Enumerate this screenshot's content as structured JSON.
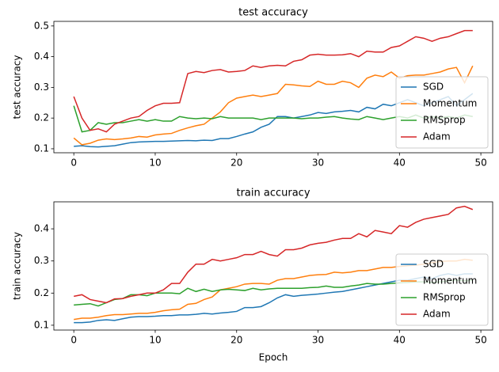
{
  "chart_data": [
    {
      "type": "line",
      "title": "test accuracy",
      "y_label": "test accuracy",
      "x": [
        0,
        1,
        2,
        3,
        4,
        5,
        6,
        7,
        8,
        9,
        10,
        11,
        12,
        13,
        14,
        15,
        16,
        17,
        18,
        19,
        20,
        21,
        22,
        23,
        24,
        25,
        26,
        27,
        28,
        29,
        30,
        31,
        32,
        33,
        34,
        35,
        36,
        37,
        38,
        39,
        40,
        41,
        42,
        43,
        44,
        45,
        46,
        47,
        48,
        49
      ],
      "xlim": [
        -2.45,
        51.45
      ],
      "xticks": [
        0,
        10,
        20,
        30,
        40,
        50
      ],
      "ylim": [
        0.087,
        0.515
      ],
      "yticks": [
        0.1,
        0.2,
        0.3,
        0.4,
        0.5
      ],
      "legend": "lower right",
      "series": [
        {
          "name": "SGD",
          "color": "#1f77b4",
          "values": [
            0.108,
            0.11,
            0.107,
            0.106,
            0.108,
            0.11,
            0.115,
            0.12,
            0.122,
            0.123,
            0.124,
            0.124,
            0.125,
            0.126,
            0.127,
            0.126,
            0.128,
            0.127,
            0.133,
            0.133,
            0.14,
            0.148,
            0.155,
            0.17,
            0.18,
            0.205,
            0.205,
            0.2,
            0.205,
            0.21,
            0.218,
            0.215,
            0.22,
            0.222,
            0.225,
            0.22,
            0.235,
            0.23,
            0.245,
            0.24,
            0.25,
            0.26,
            0.25,
            0.24,
            0.25,
            0.26,
            0.27,
            0.24,
            0.26,
            0.28
          ]
        },
        {
          "name": "Momentum",
          "color": "#ff7f0e",
          "values": [
            0.135,
            0.113,
            0.118,
            0.128,
            0.132,
            0.13,
            0.132,
            0.135,
            0.14,
            0.138,
            0.145,
            0.148,
            0.15,
            0.16,
            0.168,
            0.175,
            0.18,
            0.2,
            0.22,
            0.25,
            0.265,
            0.27,
            0.275,
            0.27,
            0.275,
            0.28,
            0.31,
            0.308,
            0.305,
            0.303,
            0.32,
            0.31,
            0.31,
            0.32,
            0.315,
            0.3,
            0.33,
            0.34,
            0.335,
            0.35,
            0.33,
            0.338,
            0.34,
            0.34,
            0.345,
            0.35,
            0.36,
            0.365,
            0.315,
            0.37
          ]
        },
        {
          "name": "RMSprop",
          "color": "#2ca02c",
          "values": [
            0.24,
            0.155,
            0.16,
            0.185,
            0.18,
            0.185,
            0.185,
            0.19,
            0.195,
            0.19,
            0.195,
            0.19,
            0.19,
            0.205,
            0.2,
            0.198,
            0.2,
            0.198,
            0.205,
            0.2,
            0.2,
            0.2,
            0.2,
            0.195,
            0.2,
            0.2,
            0.2,
            0.2,
            0.198,
            0.2,
            0.2,
            0.203,
            0.205,
            0.2,
            0.197,
            0.195,
            0.205,
            0.2,
            0.195,
            0.2,
            0.205,
            0.2,
            0.21,
            0.2,
            0.205,
            0.2,
            0.205,
            0.2,
            0.21,
            0.205
          ]
        },
        {
          "name": "Adam",
          "color": "#d62728",
          "values": [
            0.27,
            0.2,
            0.16,
            0.165,
            0.155,
            0.18,
            0.19,
            0.2,
            0.205,
            0.225,
            0.24,
            0.248,
            0.248,
            0.25,
            0.345,
            0.352,
            0.348,
            0.355,
            0.358,
            0.35,
            0.352,
            0.355,
            0.37,
            0.365,
            0.37,
            0.372,
            0.37,
            0.385,
            0.39,
            0.405,
            0.408,
            0.405,
            0.405,
            0.406,
            0.41,
            0.4,
            0.418,
            0.415,
            0.415,
            0.43,
            0.435,
            0.45,
            0.465,
            0.46,
            0.45,
            0.46,
            0.465,
            0.475,
            0.485,
            0.485
          ]
        }
      ]
    },
    {
      "type": "line",
      "title": "train accuracy",
      "y_label": "train accuracy",
      "x_label": "Epoch",
      "x": [
        0,
        1,
        2,
        3,
        4,
        5,
        6,
        7,
        8,
        9,
        10,
        11,
        12,
        13,
        14,
        15,
        16,
        17,
        18,
        19,
        20,
        21,
        22,
        23,
        24,
        25,
        26,
        27,
        28,
        29,
        30,
        31,
        32,
        33,
        34,
        35,
        36,
        37,
        38,
        39,
        40,
        41,
        42,
        43,
        44,
        45,
        46,
        47,
        48,
        49
      ],
      "xlim": [
        -2.45,
        51.45
      ],
      "xticks": [
        0,
        10,
        20,
        30,
        40,
        50
      ],
      "ylim": [
        0.085,
        0.484
      ],
      "yticks": [
        0.1,
        0.2,
        0.3,
        0.4
      ],
      "legend": "lower right",
      "series": [
        {
          "name": "SGD",
          "color": "#1f77b4",
          "values": [
            0.108,
            0.108,
            0.11,
            0.115,
            0.117,
            0.115,
            0.12,
            0.125,
            0.127,
            0.127,
            0.128,
            0.13,
            0.13,
            0.132,
            0.132,
            0.134,
            0.137,
            0.135,
            0.138,
            0.14,
            0.143,
            0.155,
            0.155,
            0.158,
            0.17,
            0.185,
            0.195,
            0.19,
            0.193,
            0.195,
            0.197,
            0.2,
            0.203,
            0.205,
            0.21,
            0.215,
            0.22,
            0.225,
            0.23,
            0.235,
            0.24,
            0.24,
            0.245,
            0.25,
            0.245,
            0.255,
            0.26,
            0.255,
            0.26,
            0.26
          ]
        },
        {
          "name": "Momentum",
          "color": "#ff7f0e",
          "values": [
            0.118,
            0.122,
            0.122,
            0.125,
            0.13,
            0.133,
            0.133,
            0.135,
            0.137,
            0.137,
            0.14,
            0.145,
            0.148,
            0.15,
            0.165,
            0.168,
            0.18,
            0.188,
            0.21,
            0.215,
            0.22,
            0.228,
            0.23,
            0.23,
            0.228,
            0.24,
            0.245,
            0.245,
            0.25,
            0.255,
            0.257,
            0.258,
            0.265,
            0.263,
            0.265,
            0.27,
            0.27,
            0.275,
            0.28,
            0.28,
            0.283,
            0.285,
            0.287,
            0.29,
            0.295,
            0.298,
            0.3,
            0.3,
            0.305,
            0.302
          ]
        },
        {
          "name": "RMSprop",
          "color": "#2ca02c",
          "values": [
            0.163,
            0.165,
            0.167,
            0.16,
            0.17,
            0.18,
            0.183,
            0.195,
            0.195,
            0.192,
            0.2,
            0.2,
            0.2,
            0.198,
            0.215,
            0.205,
            0.212,
            0.205,
            0.21,
            0.212,
            0.21,
            0.208,
            0.215,
            0.21,
            0.213,
            0.215,
            0.215,
            0.215,
            0.215,
            0.217,
            0.218,
            0.222,
            0.218,
            0.218,
            0.222,
            0.225,
            0.23,
            0.228,
            0.228,
            0.23,
            0.232,
            0.233,
            0.235,
            0.235,
            0.233,
            0.235,
            0.238,
            0.24,
            0.238,
            0.24
          ]
        },
        {
          "name": "Adam",
          "color": "#d62728",
          "values": [
            0.19,
            0.195,
            0.18,
            0.175,
            0.17,
            0.182,
            0.183,
            0.19,
            0.195,
            0.2,
            0.2,
            0.21,
            0.23,
            0.23,
            0.265,
            0.29,
            0.29,
            0.305,
            0.3,
            0.305,
            0.31,
            0.32,
            0.32,
            0.33,
            0.32,
            0.315,
            0.335,
            0.335,
            0.34,
            0.35,
            0.355,
            0.358,
            0.365,
            0.37,
            0.37,
            0.385,
            0.375,
            0.395,
            0.39,
            0.385,
            0.41,
            0.405,
            0.42,
            0.43,
            0.435,
            0.44,
            0.445,
            0.465,
            0.47,
            0.46
          ]
        }
      ]
    }
  ]
}
